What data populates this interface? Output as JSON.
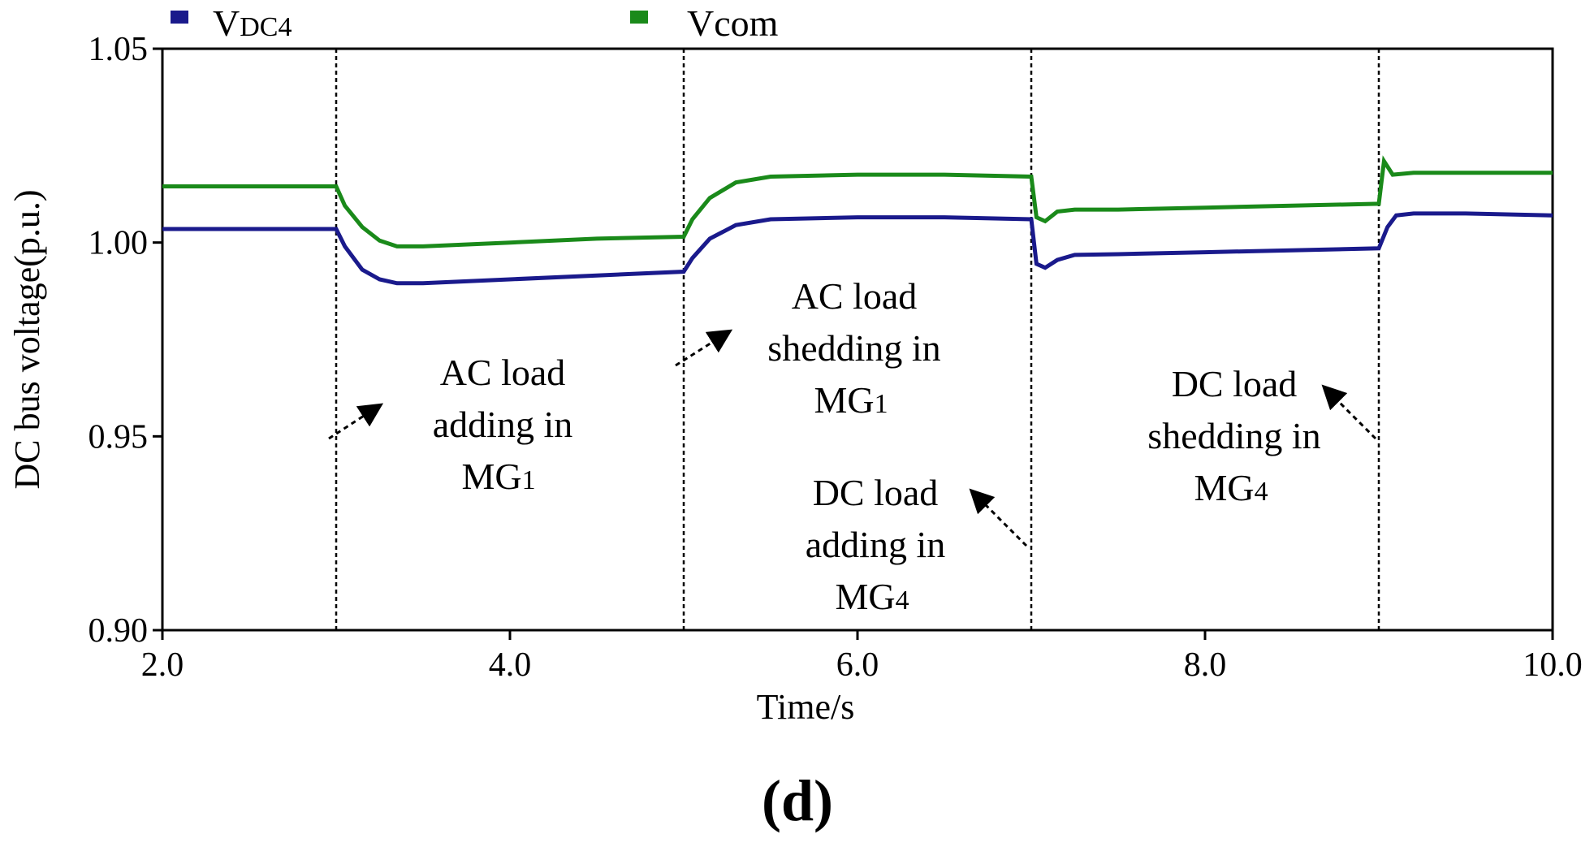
{
  "chart_data": {
    "type": "line",
    "xlabel": "Time/s",
    "ylabel": "DC bus voltage(p.u.)",
    "xlim": [
      2.0,
      10.0
    ],
    "ylim": [
      0.9,
      1.05
    ],
    "x_ticks": [
      "2.0",
      "4.0",
      "6.0",
      "8.0",
      "10.0"
    ],
    "y_ticks": [
      "0.90",
      "0.95",
      "1.00",
      "1.05"
    ],
    "legend": [
      {
        "label": "V",
        "sub": "DC4",
        "color": "#1a1a8c"
      },
      {
        "label": "Vcom",
        "sub": "",
        "color": "#1a8a1a"
      }
    ],
    "event_times": [
      3.0,
      5.0,
      7.0,
      9.0
    ],
    "series": [
      {
        "name": "VDC4",
        "color": "#1a1a8c",
        "x": [
          2.0,
          3.0,
          3.05,
          3.15,
          3.25,
          3.35,
          3.5,
          4.0,
          4.5,
          5.0,
          5.05,
          5.15,
          5.3,
          5.5,
          6.0,
          6.5,
          7.0,
          7.03,
          7.08,
          7.15,
          7.25,
          7.5,
          8.0,
          8.5,
          9.0,
          9.05,
          9.1,
          9.2,
          9.5,
          10.0
        ],
        "y": [
          1.0035,
          1.0035,
          0.999,
          0.993,
          0.9905,
          0.9895,
          0.9895,
          0.9905,
          0.9915,
          0.9925,
          0.996,
          1.001,
          1.0045,
          1.006,
          1.0065,
          1.0065,
          1.006,
          0.9945,
          0.9935,
          0.9955,
          0.9968,
          0.997,
          0.9975,
          0.998,
          0.9985,
          1.004,
          1.007,
          1.0075,
          1.0075,
          1.007
        ]
      },
      {
        "name": "Vcom",
        "color": "#1a8a1a",
        "x": [
          2.0,
          3.0,
          3.05,
          3.15,
          3.25,
          3.35,
          3.5,
          4.0,
          4.5,
          5.0,
          5.05,
          5.15,
          5.3,
          5.5,
          6.0,
          6.5,
          7.0,
          7.03,
          7.08,
          7.15,
          7.25,
          7.5,
          8.0,
          8.5,
          9.0,
          9.03,
          9.08,
          9.2,
          9.5,
          10.0
        ],
        "y": [
          1.0145,
          1.0145,
          1.0095,
          1.004,
          1.0005,
          0.999,
          0.999,
          1.0,
          1.001,
          1.0015,
          1.006,
          1.0115,
          1.0155,
          1.017,
          1.0175,
          1.0175,
          1.017,
          1.0065,
          1.0055,
          1.008,
          1.0085,
          1.0085,
          1.009,
          1.0095,
          1.01,
          1.021,
          1.0175,
          1.018,
          1.018,
          1.018
        ]
      }
    ],
    "annotations": [
      {
        "lines": [
          "AC load",
          "adding  in",
          "MG"
        ],
        "sub": "1"
      },
      {
        "lines": [
          "AC load",
          "shedding in",
          "MG"
        ],
        "sub": "1"
      },
      {
        "lines": [
          "DC load",
          "adding in",
          "MG"
        ],
        "sub": "4"
      },
      {
        "lines": [
          "DC load",
          "shedding in",
          "MG"
        ],
        "sub": "4"
      }
    ],
    "panel_label": "(d)"
  }
}
